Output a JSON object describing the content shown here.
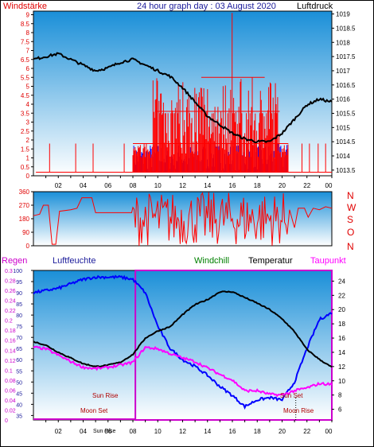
{
  "header": {
    "left_title": "Windstärke",
    "center_title": "24 hour graph day : 03 August 2020",
    "right_title": "Luftdruck"
  },
  "compass": [
    "N",
    "W",
    "S",
    "O",
    "N"
  ],
  "bottom_legend": {
    "regen": "Regen",
    "luftfeuchte": "Luftfeuchte",
    "windchill": "Windchill",
    "temperatur": "Temperatur",
    "taupunkt": "Taupunkt"
  },
  "annotations": {
    "sun_rise": "Sun Rise",
    "sun_set": "Sun Set",
    "moon_set": "Moon Set",
    "moon_rise": "Moon Rise",
    "sun_bottom": "Sun Rise"
  },
  "colors": {
    "sky_top": "#1a8fd8",
    "sky_bottom": "#ffffff",
    "wind": "#ff0000",
    "gust": "#0000ff",
    "pressure": "#000000",
    "humidity": "#0000ff",
    "temperature": "#000000",
    "dewpoint": "#ff00ff",
    "rain_box": "#cc00cc"
  },
  "chart_data": [
    {
      "type": "bar",
      "name": "wind",
      "x_ticks": [
        "02",
        "04",
        "06",
        "08",
        "10",
        "12",
        "14",
        "16",
        "18",
        "20",
        "22",
        "00"
      ],
      "left_ticks": [
        "0",
        "0.5",
        "1",
        "1.5",
        "2",
        "2.5",
        "3",
        "3.5",
        "4",
        "4.5",
        "5",
        "5.5",
        "6",
        "6.5",
        "7",
        "7.5",
        "8",
        "8.5",
        "9"
      ],
      "right_ticks": [
        "1013.5",
        "1014",
        "1014.5",
        "1015",
        "1015.5",
        "1016",
        "1016.5",
        "1017",
        "1017.5",
        "1018",
        "1018.5",
        "1019"
      ],
      "ylim_left": [
        0,
        9.2
      ],
      "ylim_right": [
        1013.3,
        1019.1
      ],
      "pressure_hourly": [
        1017.4,
        1017.5,
        1017.6,
        1017.4,
        1017.2,
        1017.0,
        1017.1,
        1017.3,
        1017.4,
        1017.2,
        1017.0,
        1016.8,
        1016.4,
        1015.9,
        1015.4,
        1015.1,
        1014.8,
        1014.6,
        1014.5,
        1014.5,
        1014.8,
        1015.3,
        1015.8,
        1016.0,
        1015.9
      ]
    },
    {
      "type": "line",
      "name": "wind direction",
      "y_ticks": [
        "0",
        "90",
        "180",
        "270",
        "360"
      ],
      "ylim": [
        0,
        360
      ]
    },
    {
      "type": "line",
      "name": "weather",
      "x_ticks": [
        "02",
        "04",
        "06",
        "08",
        "10",
        "12",
        "14",
        "16",
        "18",
        "20",
        "22",
        "00"
      ],
      "regen_ticks": [
        "0",
        "0.02",
        "0.04",
        "0.06",
        "0.08",
        "0.1",
        "0.12",
        "0.14",
        "0.16",
        "0.18",
        "0.2",
        "0.22",
        "0.24",
        "0.26",
        "0.28",
        "0.3"
      ],
      "humidity_ticks": [
        "35",
        "40",
        "45",
        "50",
        "55",
        "60",
        "65",
        "70",
        "75",
        "80",
        "85",
        "90",
        "95",
        "100"
      ],
      "temp_ticks": [
        "6",
        "8",
        "10",
        "12",
        "14",
        "16",
        "18",
        "20",
        "22",
        "24"
      ],
      "ylim_humidity": [
        33,
        100
      ],
      "ylim_temp": [
        4.5,
        25.5
      ],
      "humidity_hourly": [
        90,
        91,
        92,
        94,
        96,
        97,
        97,
        97,
        96,
        90,
        75,
        65,
        60,
        57,
        53,
        48,
        44,
        39,
        42,
        43,
        42,
        50,
        65,
        78,
        81
      ],
      "temperature_hourly": [
        15.5,
        15.0,
        14.0,
        13.2,
        12.4,
        12.0,
        12.2,
        12.6,
        13.7,
        16.0,
        17.0,
        17.6,
        19.3,
        20.7,
        21.4,
        22.5,
        22.5,
        21.7,
        20.9,
        20.0,
        18.7,
        16.9,
        14.4,
        13.0,
        11.9
      ],
      "dewpoint_hourly": [
        14.7,
        14.5,
        13.6,
        12.7,
        11.9,
        11.7,
        11.9,
        12.2,
        12.6,
        14.7,
        14.5,
        13.8,
        13.2,
        12.7,
        11.8,
        10.9,
        10.1,
        8.6,
        8.6,
        8.1,
        8.0,
        8.6,
        9.0,
        9.6,
        9.5
      ]
    }
  ]
}
